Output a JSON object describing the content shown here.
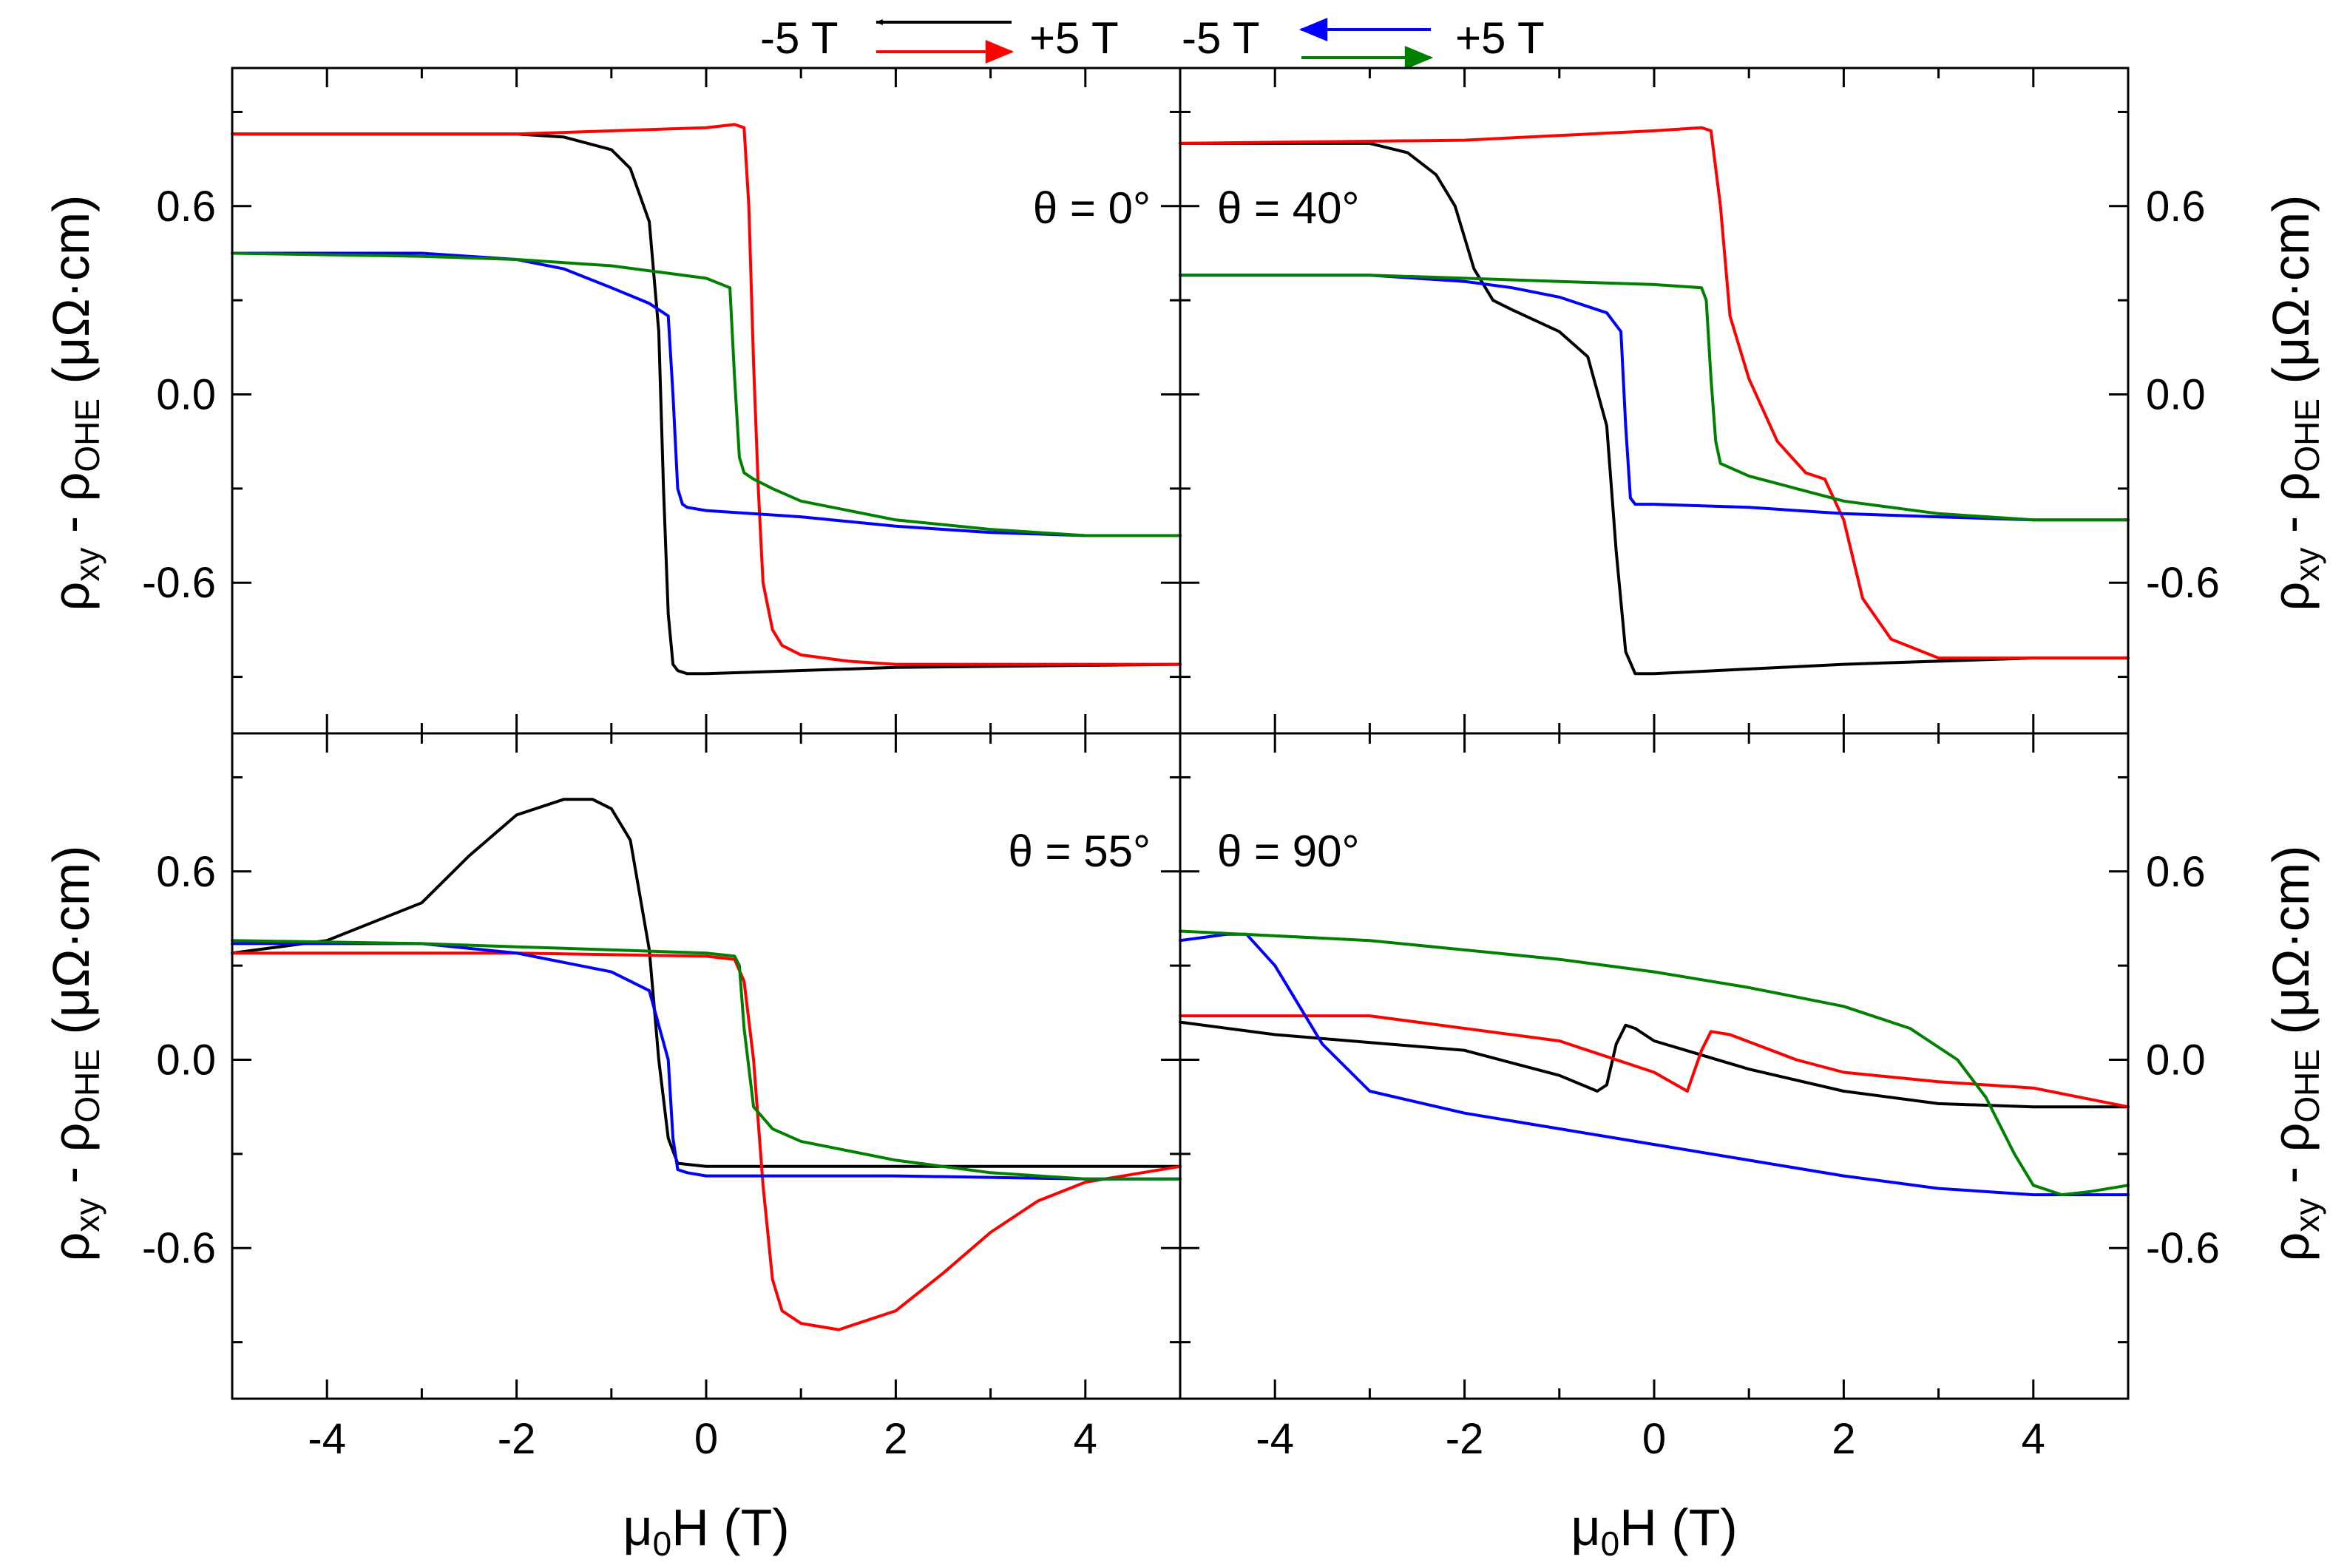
{
  "chart_data": {
    "type": "line",
    "layout": "2x2 panels",
    "xlabel": "μ0H (T)",
    "ylabel": "ρxy - ρOHE (μΩ·cm)",
    "xlim": [
      -5,
      5
    ],
    "ylim": [
      -1.08,
      1.04
    ],
    "xticks": [
      -4,
      -2,
      0,
      2,
      4
    ],
    "yticks": [
      -0.6,
      0.0,
      0.6
    ],
    "x_tick_labels": [
      "-4",
      "-2",
      "0",
      "2",
      "4"
    ],
    "y_tick_labels": [
      "-0.6",
      "0.0",
      "0.6"
    ],
    "legend": {
      "groups": [
        {
          "start_label": "-5 T",
          "end_label": "+5 T",
          "down_sweep_color": "#000000",
          "up_sweep_color": "#ff0000"
        },
        {
          "start_label": "-5 T",
          "end_label": "+5 T",
          "down_sweep_color": "#0000ff",
          "up_sweep_color": "#008000"
        }
      ]
    },
    "panels": [
      {
        "label": "θ = 0°",
        "series": [
          {
            "name": "black (+5 T → -5 T)",
            "color": "#000000",
            "x": [
              -5,
              -2,
              -1.5,
              -1,
              -0.8,
              -0.6,
              -0.5,
              -0.45,
              -0.4,
              -0.35,
              -0.3,
              -0.2,
              0,
              2,
              5
            ],
            "y": [
              0.83,
              0.83,
              0.82,
              0.78,
              0.72,
              0.55,
              0.2,
              -0.3,
              -0.7,
              -0.86,
              -0.88,
              -0.89,
              -0.89,
              -0.87,
              -0.86
            ]
          },
          {
            "name": "red (-5 T → +5 T)",
            "color": "#ff0000",
            "x": [
              -5,
              -2,
              0,
              0.3,
              0.4,
              0.45,
              0.5,
              0.55,
              0.6,
              0.7,
              0.8,
              1,
              1.5,
              2,
              3,
              5
            ],
            "y": [
              0.83,
              0.83,
              0.85,
              0.86,
              0.85,
              0.6,
              0.1,
              -0.3,
              -0.6,
              -0.75,
              -0.8,
              -0.83,
              -0.85,
              -0.86,
              -0.86,
              -0.86
            ]
          },
          {
            "name": "blue (+5 T → -5 T)",
            "color": "#0000ff",
            "x": [
              -5,
              -3,
              -2,
              -1.5,
              -1,
              -0.6,
              -0.4,
              -0.35,
              -0.3,
              -0.25,
              -0.2,
              0,
              1,
              2,
              3,
              4,
              5
            ],
            "y": [
              0.45,
              0.45,
              0.43,
              0.4,
              0.34,
              0.29,
              0.25,
              0.0,
              -0.3,
              -0.35,
              -0.36,
              -0.37,
              -0.39,
              -0.42,
              -0.44,
              -0.45,
              -0.45
            ]
          },
          {
            "name": "green (-5 T → +5 T)",
            "color": "#008000",
            "x": [
              -5,
              -3,
              -2,
              -1,
              0,
              0.25,
              0.3,
              0.35,
              0.4,
              0.5,
              0.7,
              1,
              2,
              3,
              4,
              5
            ],
            "y": [
              0.45,
              0.44,
              0.43,
              0.41,
              0.37,
              0.34,
              0.05,
              -0.2,
              -0.25,
              -0.27,
              -0.3,
              -0.34,
              -0.4,
              -0.43,
              -0.45,
              -0.45
            ]
          }
        ]
      },
      {
        "label": "θ = 40°",
        "series": [
          {
            "name": "black (+5 T → -5 T)",
            "color": "#000000",
            "x": [
              -5,
              -3,
              -2.6,
              -2.3,
              -2.1,
              -1.9,
              -1.7,
              -1.5,
              -1,
              -0.7,
              -0.5,
              -0.4,
              -0.3,
              -0.2,
              0,
              2,
              4,
              5
            ],
            "y": [
              0.8,
              0.8,
              0.77,
              0.7,
              0.6,
              0.4,
              0.3,
              0.27,
              0.2,
              0.12,
              -0.1,
              -0.5,
              -0.82,
              -0.89,
              -0.89,
              -0.86,
              -0.84,
              -0.84
            ]
          },
          {
            "name": "red (-5 T → +5 T)",
            "color": "#ff0000",
            "x": [
              -5,
              -2,
              0,
              0.5,
              0.6,
              0.7,
              0.8,
              1,
              1.3,
              1.6,
              1.8,
              2,
              2.2,
              2.5,
              3,
              5
            ],
            "y": [
              0.8,
              0.81,
              0.84,
              0.85,
              0.84,
              0.6,
              0.25,
              0.05,
              -0.15,
              -0.25,
              -0.27,
              -0.4,
              -0.65,
              -0.78,
              -0.84,
              -0.84
            ]
          },
          {
            "name": "blue (+5 T → -5 T)",
            "color": "#0000ff",
            "x": [
              -5,
              -3,
              -2,
              -1.5,
              -1,
              -0.5,
              -0.35,
              -0.3,
              -0.25,
              -0.2,
              0,
              1,
              2,
              3,
              4,
              5
            ],
            "y": [
              0.38,
              0.38,
              0.36,
              0.34,
              0.31,
              0.26,
              0.2,
              -0.1,
              -0.33,
              -0.35,
              -0.35,
              -0.36,
              -0.38,
              -0.39,
              -0.4,
              -0.4
            ]
          },
          {
            "name": "green (-5 T → +5 T)",
            "color": "#008000",
            "x": [
              -5,
              -3,
              -2,
              -1,
              0,
              0.5,
              0.55,
              0.6,
              0.65,
              0.7,
              1,
              1.5,
              2,
              3,
              4,
              5
            ],
            "y": [
              0.38,
              0.38,
              0.37,
              0.36,
              0.35,
              0.34,
              0.3,
              0.05,
              -0.15,
              -0.22,
              -0.26,
              -0.3,
              -0.34,
              -0.38,
              -0.4,
              -0.4
            ]
          }
        ]
      },
      {
        "label": "θ = 55°",
        "series": [
          {
            "name": "black (+5 T → -5 T)",
            "color": "#000000",
            "x": [
              -5,
              -4,
              -3,
              -2.5,
              -2,
              -1.5,
              -1.2,
              -1,
              -0.8,
              -0.6,
              -0.5,
              -0.4,
              -0.3,
              0,
              2,
              4,
              5
            ],
            "y": [
              0.34,
              0.38,
              0.5,
              0.65,
              0.78,
              0.83,
              0.83,
              0.8,
              0.7,
              0.35,
              0.0,
              -0.25,
              -0.33,
              -0.34,
              -0.34,
              -0.34,
              -0.34
            ]
          },
          {
            "name": "red (-5 T → +5 T)",
            "color": "#ff0000",
            "x": [
              -5,
              -2,
              0,
              0.3,
              0.4,
              0.5,
              0.6,
              0.7,
              0.8,
              1,
              1.4,
              2,
              2.5,
              3,
              3.5,
              4,
              5
            ],
            "y": [
              0.34,
              0.34,
              0.33,
              0.32,
              0.25,
              0.0,
              -0.4,
              -0.7,
              -0.8,
              -0.84,
              -0.86,
              -0.8,
              -0.68,
              -0.55,
              -0.45,
              -0.39,
              -0.34
            ]
          },
          {
            "name": "blue (+5 T → -5 T)",
            "color": "#0000ff",
            "x": [
              -5,
              -3,
              -2,
              -1,
              -0.6,
              -0.4,
              -0.35,
              -0.3,
              -0.2,
              0,
              2,
              4,
              5
            ],
            "y": [
              0.37,
              0.37,
              0.34,
              0.28,
              0.22,
              0.0,
              -0.25,
              -0.35,
              -0.36,
              -0.37,
              -0.37,
              -0.38,
              -0.38
            ]
          },
          {
            "name": "green (-5 T → +5 T)",
            "color": "#008000",
            "x": [
              -5,
              -3,
              -2,
              -1,
              0,
              0.3,
              0.35,
              0.4,
              0.5,
              0.7,
              1,
              2,
              3,
              4,
              5
            ],
            "y": [
              0.38,
              0.37,
              0.36,
              0.35,
              0.34,
              0.33,
              0.3,
              0.1,
              -0.15,
              -0.22,
              -0.26,
              -0.32,
              -0.36,
              -0.38,
              -0.38
            ]
          }
        ]
      },
      {
        "label": "θ = 90°",
        "series": [
          {
            "name": "black (+5 T → -5 T)",
            "color": "#000000",
            "x": [
              -5,
              -4,
              -2,
              -1,
              -0.6,
              -0.5,
              -0.4,
              -0.3,
              -0.2,
              0,
              1,
              2,
              3,
              4,
              5
            ],
            "y": [
              0.12,
              0.08,
              0.03,
              -0.05,
              -0.1,
              -0.08,
              0.05,
              0.11,
              0.1,
              0.06,
              -0.03,
              -0.1,
              -0.14,
              -0.15,
              -0.15
            ]
          },
          {
            "name": "red (-5 T → +5 T)",
            "color": "#ff0000",
            "x": [
              -5,
              -3,
              -1,
              0,
              0.35,
              0.5,
              0.6,
              0.8,
              1.5,
              2,
              3,
              4,
              5
            ],
            "y": [
              0.14,
              0.14,
              0.06,
              -0.04,
              -0.1,
              0.03,
              0.09,
              0.08,
              0.0,
              -0.04,
              -0.07,
              -0.09,
              -0.15
            ]
          },
          {
            "name": "blue (+5 T → -5 T)",
            "color": "#0000ff",
            "x": [
              -5,
              -4.5,
              -4.3,
              -4,
              -3.5,
              -3,
              -2,
              -1,
              0,
              1,
              2,
              3,
              4,
              5
            ],
            "y": [
              0.38,
              0.4,
              0.4,
              0.3,
              0.05,
              -0.1,
              -0.17,
              -0.22,
              -0.27,
              -0.32,
              -0.37,
              -0.41,
              -0.43,
              -0.43
            ]
          },
          {
            "name": "green (-5 T → +5 T)",
            "color": "#008000",
            "x": [
              -5,
              -3,
              -1,
              0,
              1,
              2,
              2.7,
              3.2,
              3.5,
              3.8,
              4,
              4.3,
              4.6,
              5
            ],
            "y": [
              0.41,
              0.38,
              0.32,
              0.28,
              0.23,
              0.17,
              0.1,
              0.0,
              -0.12,
              -0.3,
              -0.4,
              -0.43,
              -0.42,
              -0.4
            ]
          }
        ]
      }
    ]
  }
}
